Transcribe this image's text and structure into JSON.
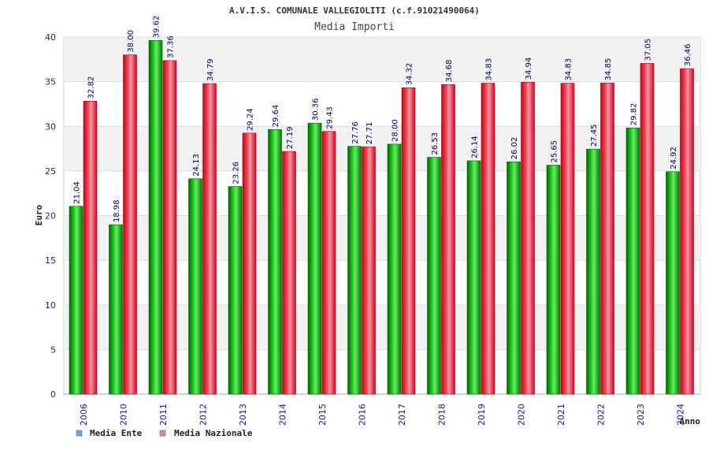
{
  "chart_data": {
    "type": "bar",
    "title": "A.V.I.S. COMUNALE VALLEGIOLITI (c.f.91021490064)",
    "subtitle": "Media Importi",
    "xlabel": "Anno",
    "ylabel": "Euro",
    "ylim": [
      0,
      40
    ],
    "yticks": [
      0,
      5,
      10,
      15,
      20,
      25,
      30,
      35,
      40
    ],
    "grid": true,
    "legend_position": "bottom-left",
    "categories": [
      "2006",
      "2010",
      "2011",
      "2012",
      "2013",
      "2014",
      "2015",
      "2016",
      "2017",
      "2018",
      "2019",
      "2020",
      "2021",
      "2022",
      "2023",
      "2024"
    ],
    "series": [
      {
        "name": "Media Ente",
        "legend_color": "#66aadd",
        "bar_color": "#11aa11",
        "values": [
          21.04,
          18.98,
          39.62,
          24.13,
          23.26,
          29.64,
          30.36,
          27.76,
          28.0,
          26.53,
          26.14,
          26.02,
          25.65,
          27.45,
          29.82,
          24.92
        ],
        "labels": [
          "21.04",
          "18.98",
          "39.62",
          "24.13",
          "23.26",
          "29.64",
          "30.36",
          "27.76",
          "28.00",
          "26.53",
          "26.14",
          "26.02",
          "25.65",
          "27.45",
          "29.82",
          "24.92"
        ]
      },
      {
        "name": "Media Nazionale",
        "legend_color": "#dd88aa",
        "bar_color": "#ee3344",
        "values": [
          32.82,
          38.0,
          37.36,
          34.79,
          29.24,
          27.19,
          29.43,
          27.71,
          34.32,
          34.68,
          34.83,
          34.94,
          34.83,
          34.85,
          37.05,
          36.46
        ],
        "labels": [
          "32.82",
          "38.00",
          "37.36",
          "34.79",
          "29.24",
          "27.19",
          "29.43",
          "27.71",
          "34.32",
          "34.68",
          "34.83",
          "34.94",
          "34.83",
          "34.85",
          "37.05",
          "36.46"
        ]
      }
    ]
  }
}
